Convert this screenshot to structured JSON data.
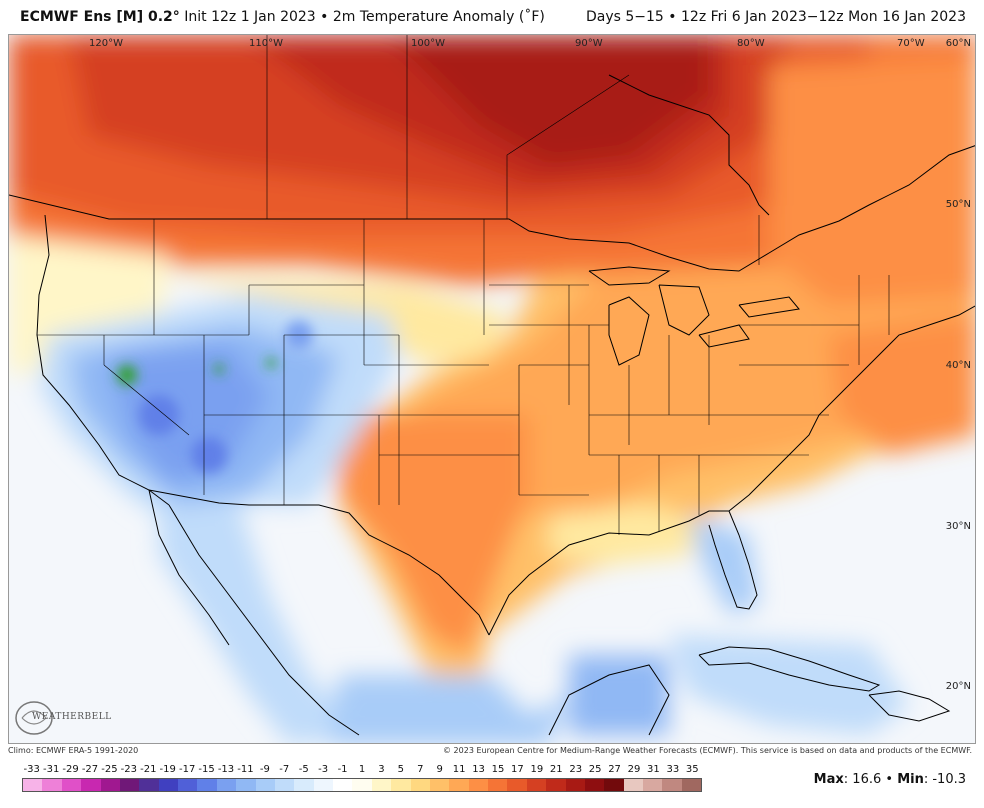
{
  "header": {
    "model": "ECMWF Ens [M] 0.2°",
    "init": "Init 12z 1 Jan 2023 • 2m Temperature Anomaly (˚F)",
    "valid": "Days 5−15 • 12z Fri 6 Jan 2023−12z Mon 16 Jan 2023"
  },
  "map": {
    "lon_labels": [
      "120°W",
      "110°W",
      "100°W",
      "90°W",
      "80°W",
      "70°W"
    ],
    "lat_labels": [
      "60°N",
      "50°N",
      "40°N",
      "30°N",
      "20°N"
    ]
  },
  "footer": {
    "climo": "Climo: ECMWF ERA-5 1991-2020",
    "copyright": "© 2023 European Centre for Medium-Range Weather Forecasts (ECMWF). This service is based on data and products of the ECMWF."
  },
  "colorbar": {
    "ticks": [
      "-33",
      "-31",
      "-29",
      "-27",
      "-25",
      "-23",
      "-21",
      "-19",
      "-17",
      "-15",
      "-13",
      "-11",
      "-9",
      "-7",
      "-5",
      "-3",
      "-1",
      "1",
      "3",
      "5",
      "7",
      "9",
      "11",
      "13",
      "15",
      "17",
      "19",
      "21",
      "23",
      "25",
      "27",
      "29",
      "31",
      "33",
      "35"
    ],
    "colors": [
      "#f7b3e8",
      "#ee80d8",
      "#e050c8",
      "#c828b0",
      "#a01890",
      "#701878",
      "#503098",
      "#4040c0",
      "#5060d8",
      "#6080e8",
      "#7aa0f0",
      "#90b8f4",
      "#a8ccf8",
      "#c0dcfa",
      "#d8ebfc",
      "#eef6fe",
      "#ffffff",
      "#fffdf0",
      "#fff6c8",
      "#ffe9a0",
      "#ffd880",
      "#ffc068",
      "#ffa855",
      "#fd8f45",
      "#f57436",
      "#e85a2a",
      "#d54022",
      "#c02a1a",
      "#a81a14",
      "#8e0e10",
      "#720a0c",
      "#e8c8c0",
      "#d8a8a0",
      "#c08880",
      "#a06860"
    ]
  },
  "stats": {
    "max_label": "Max",
    "max": "16.6",
    "min_label": "Min",
    "min": "-10.3"
  },
  "logo": {
    "text": "WEATHERBELL"
  }
}
